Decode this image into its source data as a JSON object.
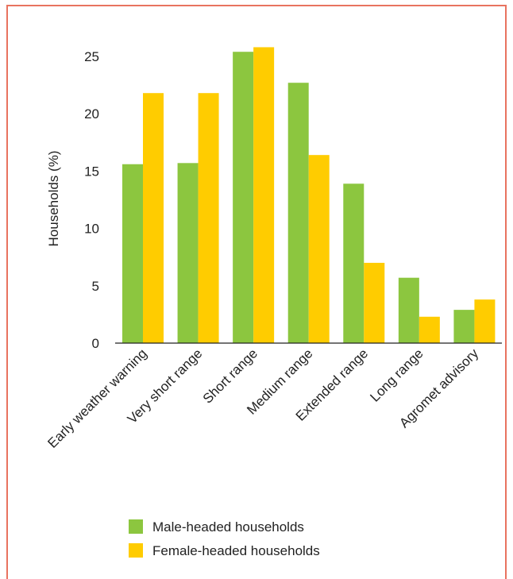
{
  "chart_data": {
    "type": "bar",
    "title": "",
    "xlabel": "",
    "ylabel": "Households (%)",
    "ylim": [
      0,
      25
    ],
    "yticks": [
      0,
      5,
      10,
      15,
      20,
      25
    ],
    "grid": false,
    "legend_position": "bottom",
    "categories": [
      "Early weather warning",
      "Very short range",
      "Short range",
      "Medium range",
      "Extended range",
      "Long range",
      "Agromet advisory"
    ],
    "series": [
      {
        "name": "Male-headed households",
        "color": "#8cc63f",
        "values": [
          15.6,
          15.7,
          25.4,
          22.7,
          13.9,
          5.7,
          2.9
        ]
      },
      {
        "name": "Female-headed households",
        "color": "#ffcc00",
        "values": [
          21.8,
          21.8,
          25.8,
          16.4,
          7.0,
          2.3,
          3.8
        ]
      }
    ]
  },
  "frame_color": "#e8735f"
}
